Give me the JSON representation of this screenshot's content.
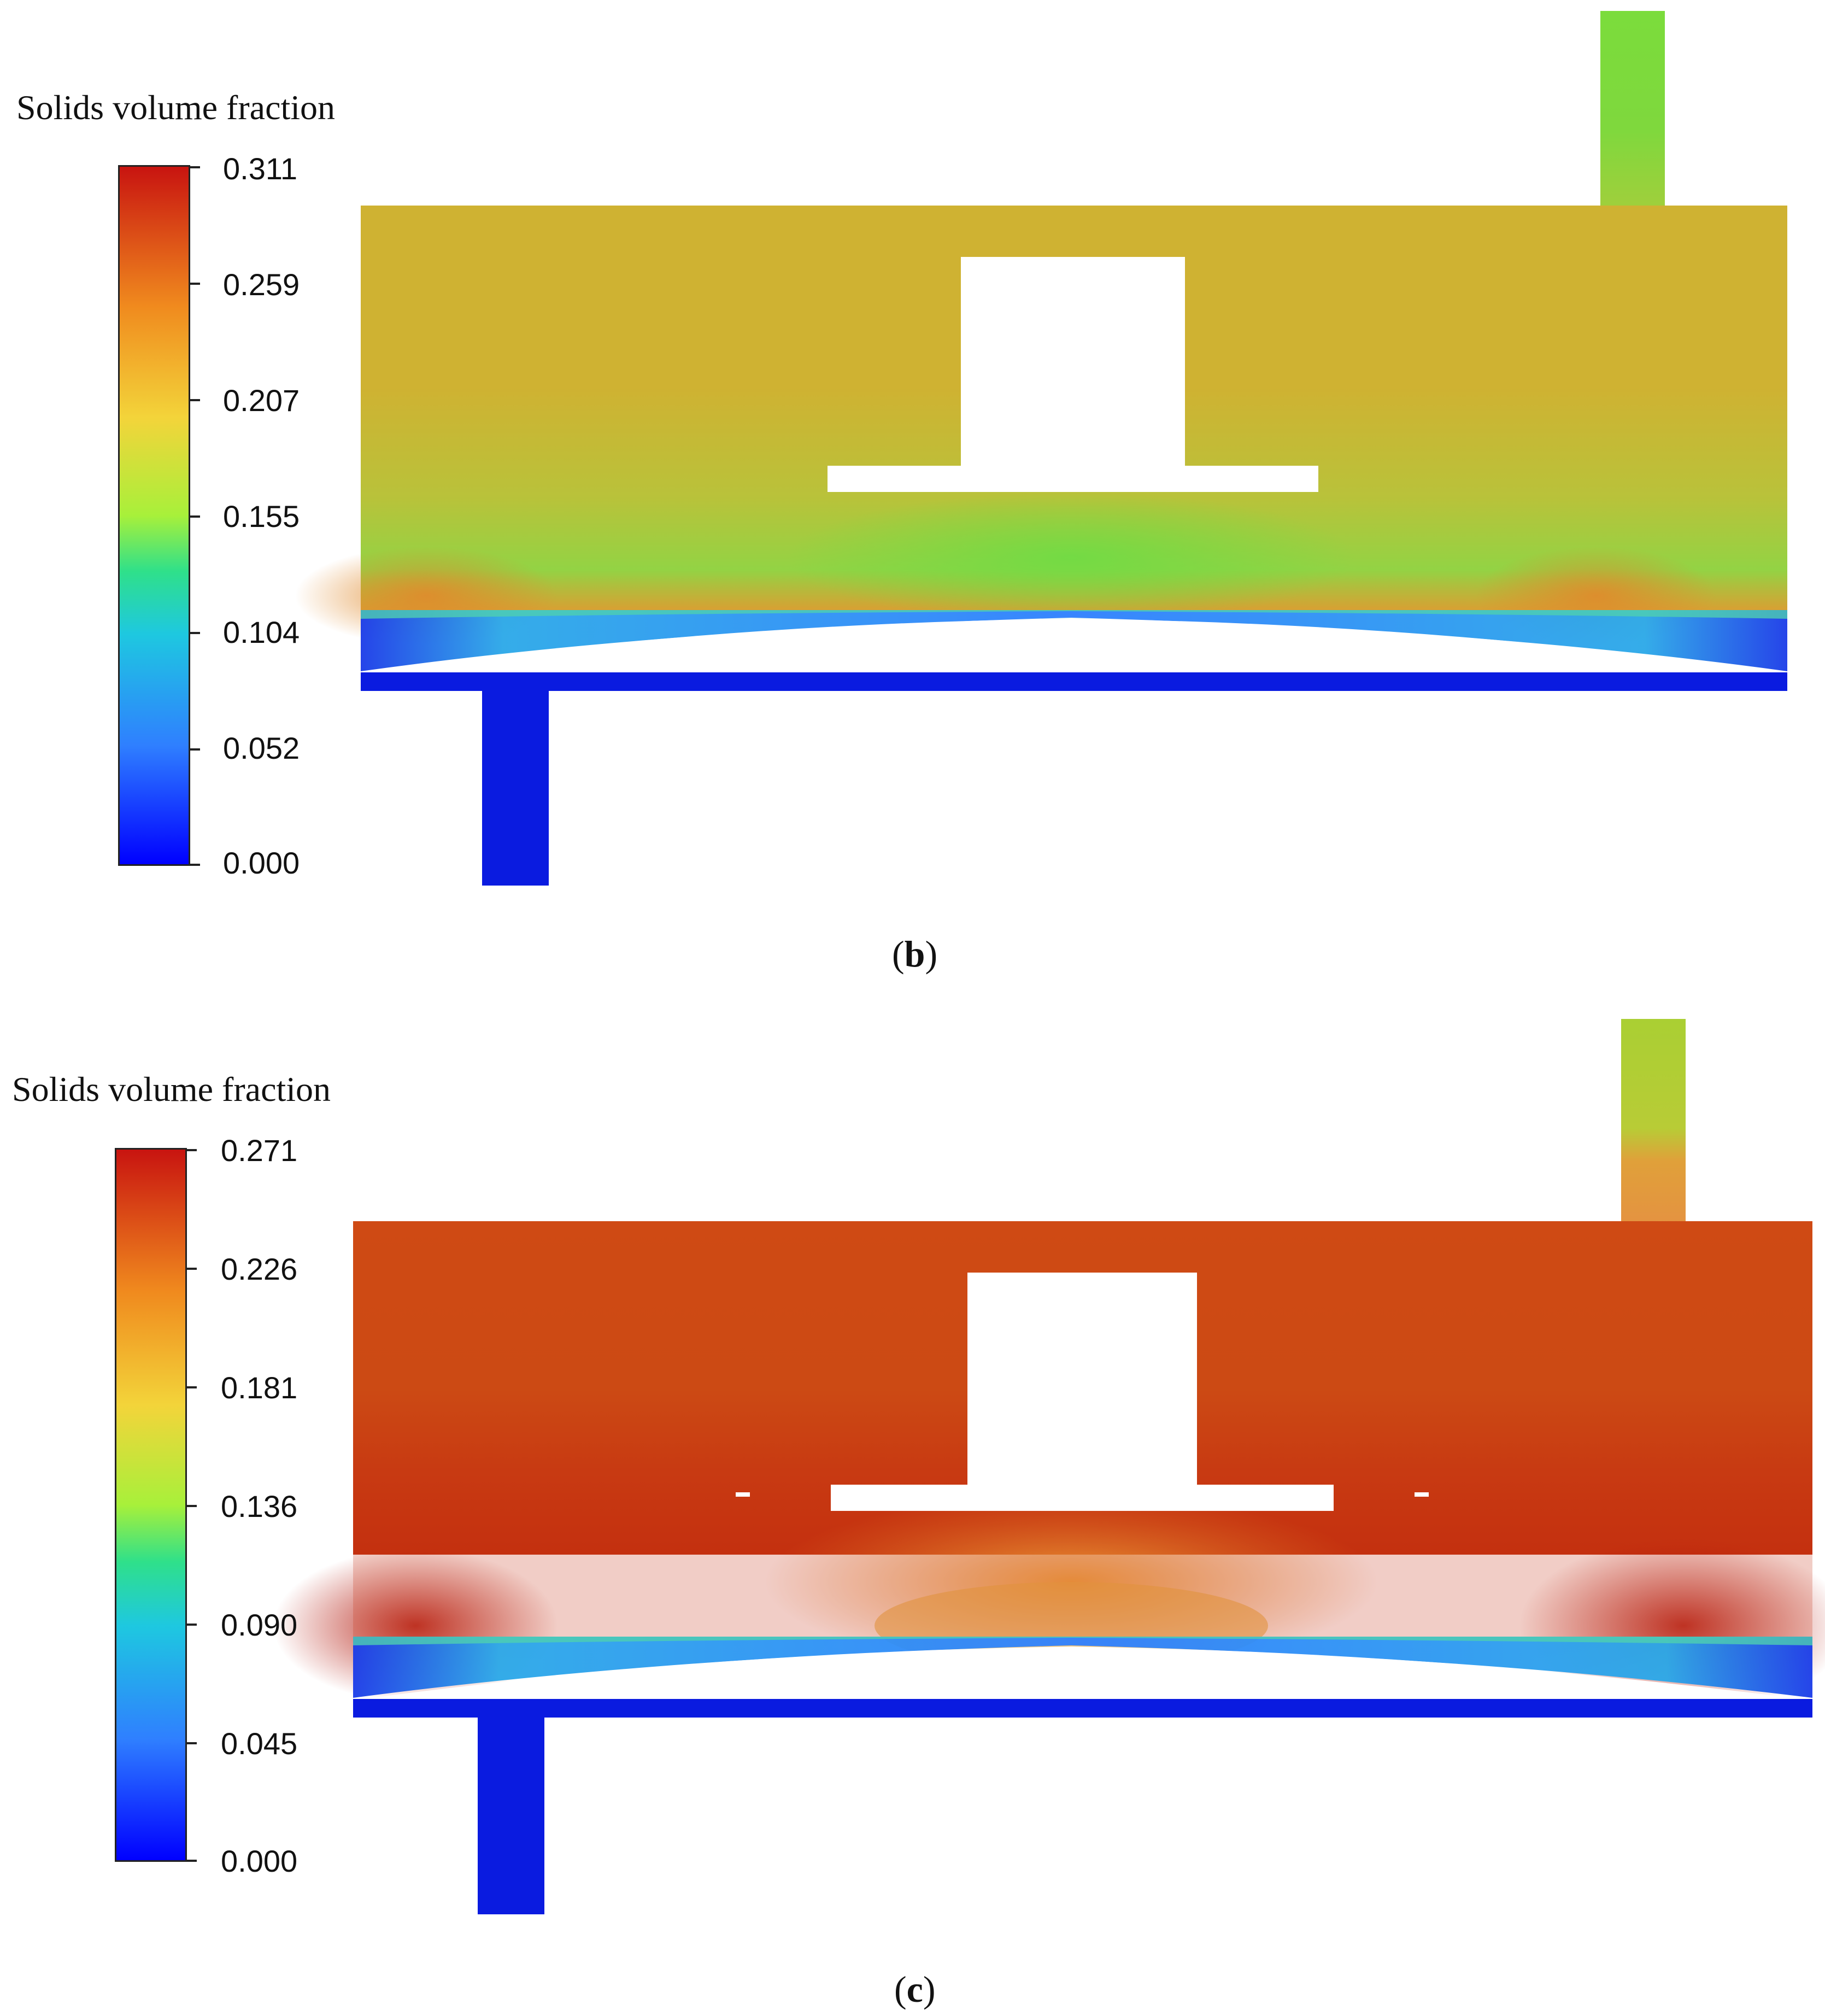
{
  "panels": [
    {
      "id": "b",
      "legend_title": "Solids volume fraction",
      "ticks": [
        "0.311",
        "0.259",
        "0.207",
        "0.155",
        "0.104",
        "0.052",
        "0.000"
      ],
      "caption_letter": "b"
    },
    {
      "id": "c",
      "legend_title": "Solids volume fraction",
      "ticks": [
        "0.271",
        "0.226",
        "0.181",
        "0.136",
        "0.090",
        "0.045",
        "0.000"
      ],
      "caption_letter": "c"
    }
  ],
  "colors": {
    "blue": "#0a1be0",
    "deep_blue": "#0000ff",
    "green": "#7bdc3c",
    "yellow_olive": "#cfb232",
    "orange": "#e07a28",
    "red_orange": "#cf4a14",
    "dark_red": "#b92110",
    "white": "#ffffff"
  }
}
